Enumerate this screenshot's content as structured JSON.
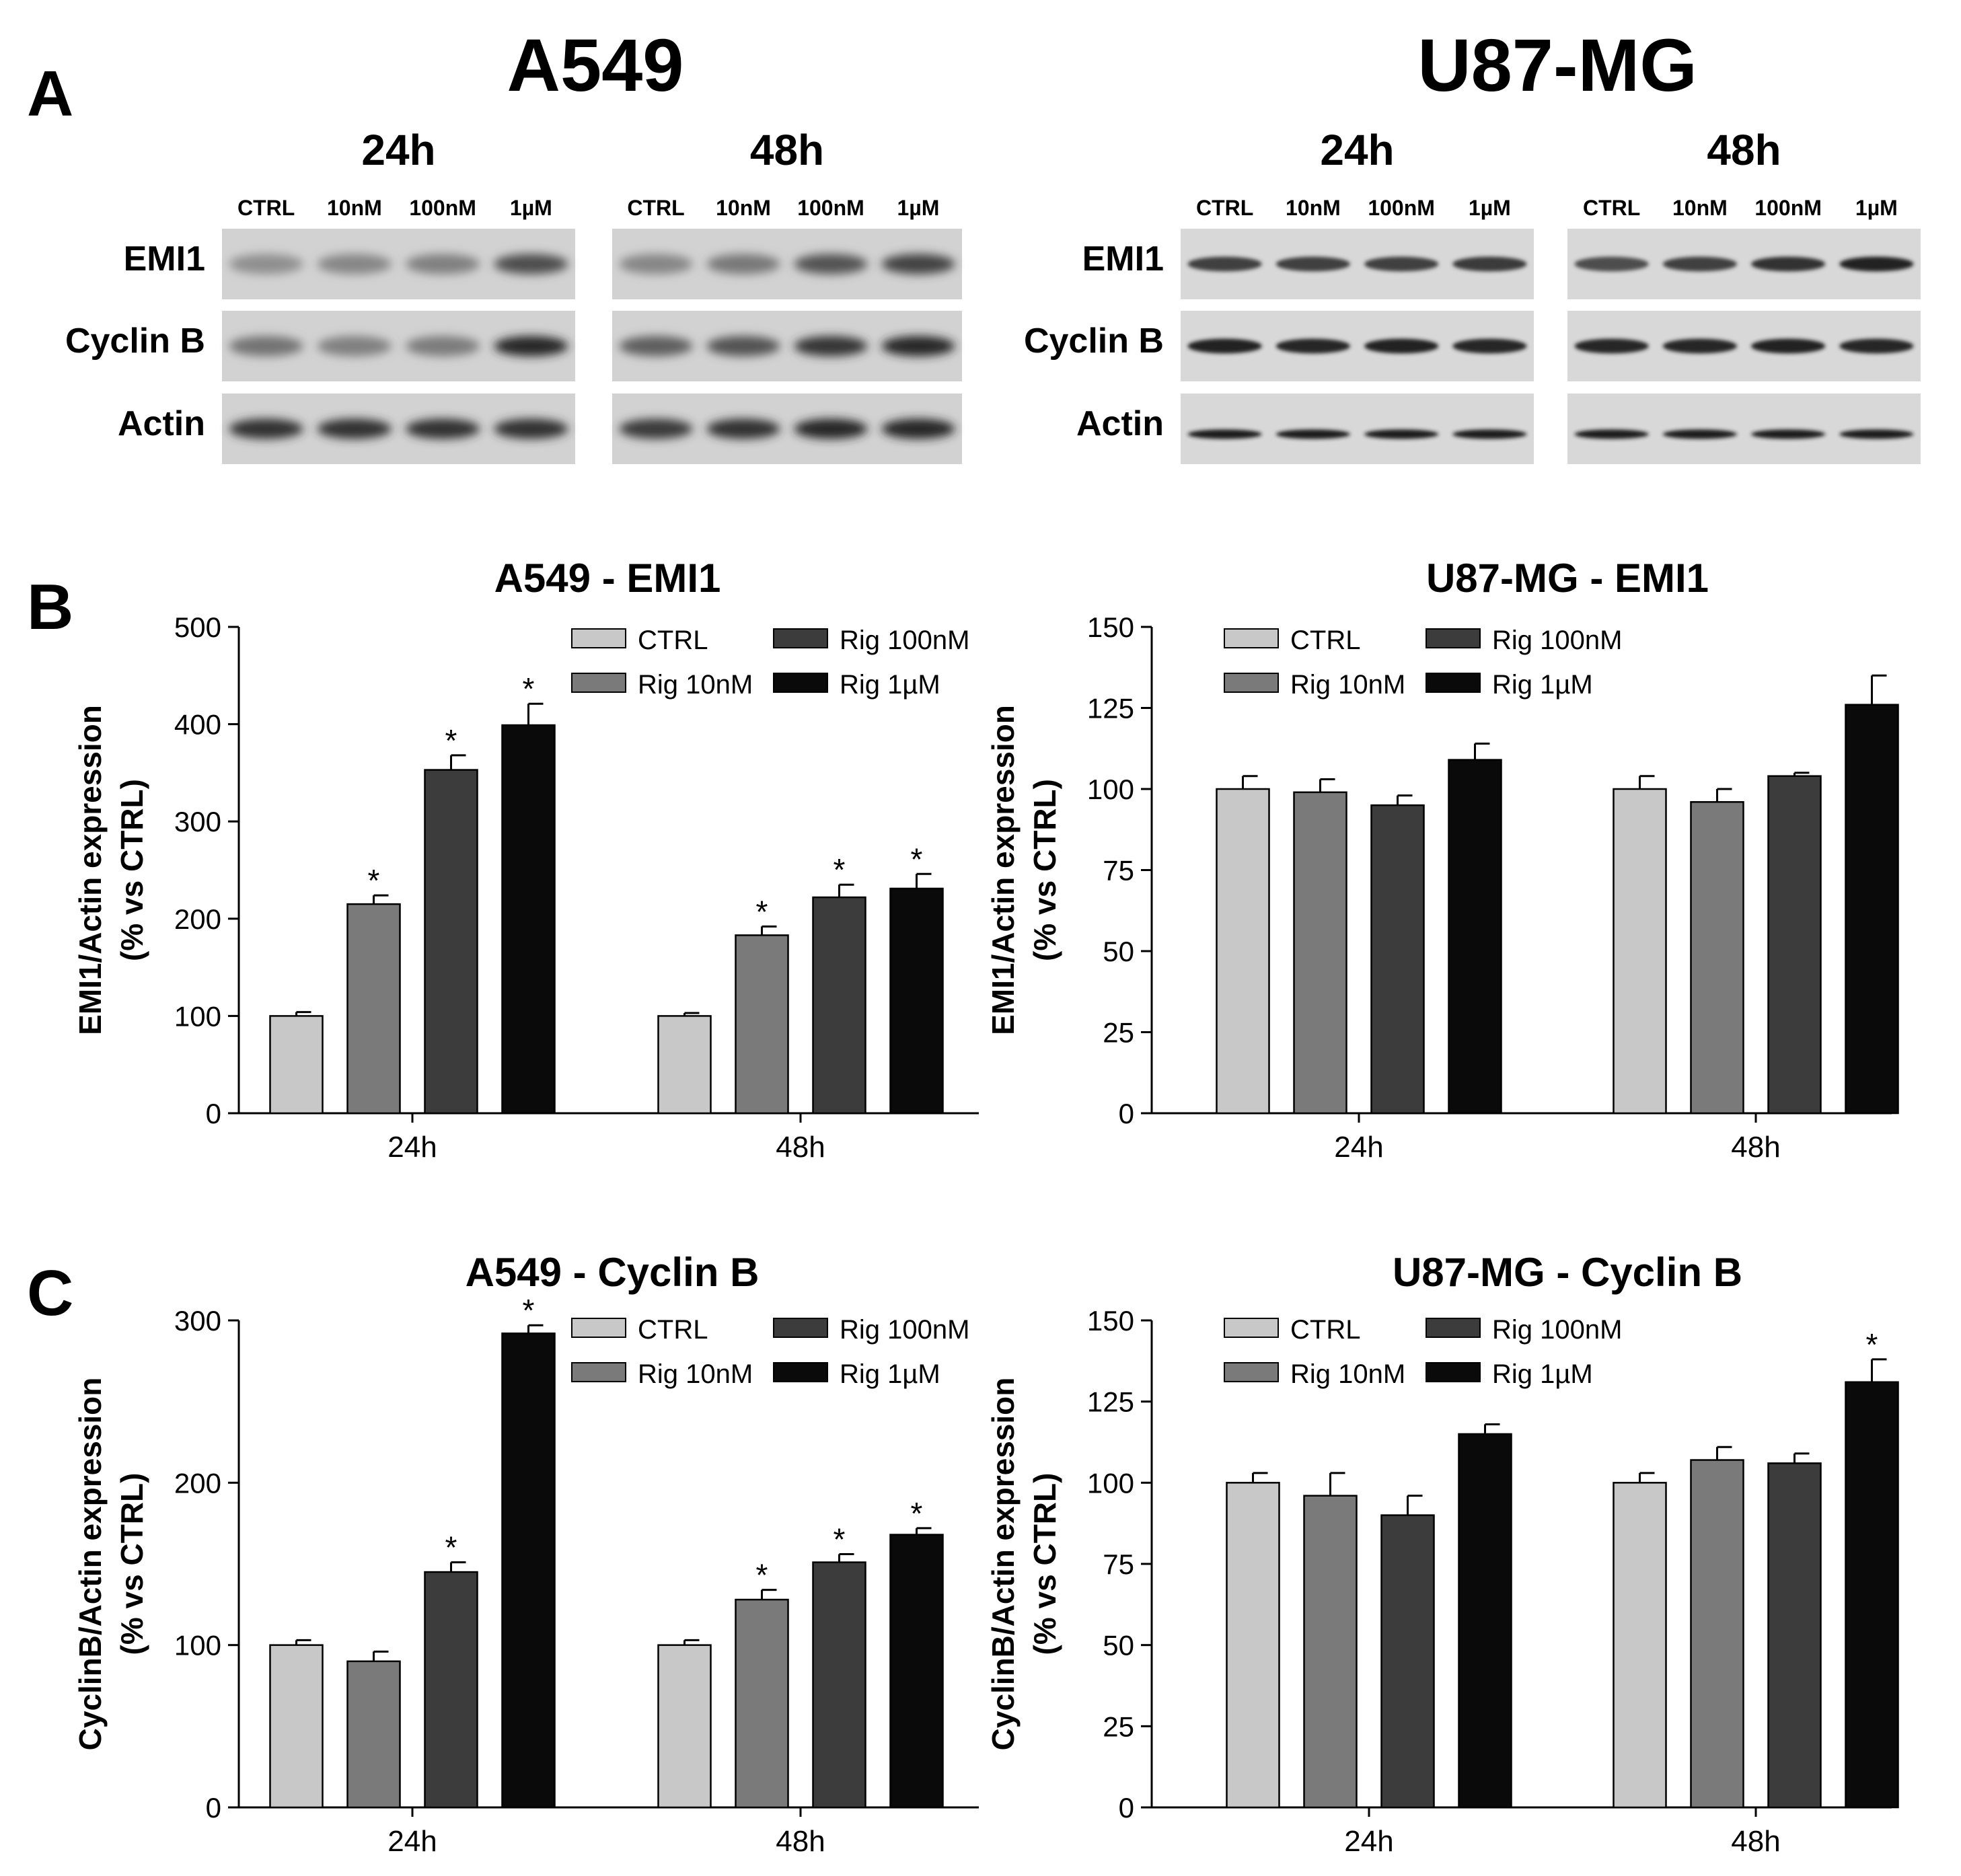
{
  "panel_letters": {
    "a": "A",
    "b": "B",
    "c": "C"
  },
  "western_blot": {
    "groups": [
      {
        "cell_line": "A549",
        "timepoints": [
          {
            "label": "24h",
            "lanes": [
              "CTRL",
              "10nM",
              "100nM",
              "1µM"
            ]
          },
          {
            "label": "48h",
            "lanes": [
              "CTRL",
              "10nM",
              "100nM",
              "1µM"
            ]
          }
        ],
        "rows": [
          "EMI1",
          "Cyclin B",
          "Actin"
        ]
      },
      {
        "cell_line": "U87-MG",
        "timepoints": [
          {
            "label": "24h",
            "lanes": [
              "CTRL",
              "10nM",
              "100nM",
              "1µM"
            ]
          },
          {
            "label": "48h",
            "lanes": [
              "CTRL",
              "10nM",
              "100nM",
              "1µM"
            ]
          }
        ],
        "rows": [
          "EMI1",
          "Cyclin B",
          "Actin"
        ]
      }
    ],
    "band_intensity": {
      "A549": {
        "EMI1": [
          [
            0.3,
            0.35,
            0.38,
            0.65
          ],
          [
            0.35,
            0.42,
            0.62,
            0.7
          ]
        ],
        "Cyclin B": [
          [
            0.45,
            0.38,
            0.4,
            0.85
          ],
          [
            0.55,
            0.62,
            0.78,
            0.85
          ]
        ],
        "Actin": [
          [
            0.8,
            0.8,
            0.8,
            0.8
          ],
          [
            0.75,
            0.8,
            0.85,
            0.85
          ]
        ]
      },
      "U87-MG": {
        "EMI1": [
          [
            0.72,
            0.72,
            0.72,
            0.75
          ],
          [
            0.65,
            0.72,
            0.8,
            0.88
          ]
        ],
        "Cyclin B": [
          [
            0.88,
            0.85,
            0.88,
            0.85
          ],
          [
            0.85,
            0.85,
            0.88,
            0.85
          ]
        ],
        "Actin": [
          [
            0.9,
            0.9,
            0.9,
            0.9
          ],
          [
            0.9,
            0.9,
            0.9,
            0.9
          ]
        ]
      }
    }
  },
  "chart_data": [
    {
      "type": "bar",
      "title": "A549 - EMI1",
      "ylabel": [
        "EMI1/Actin expression",
        "(% vs CTRL)"
      ],
      "xlabel": "",
      "categories": [
        "24h",
        "48h"
      ],
      "ylim": [
        0,
        500
      ],
      "yticks": [
        0,
        100,
        200,
        300,
        400,
        500
      ],
      "legend_position": "top-right",
      "series": [
        {
          "name": "CTRL",
          "values": [
            100,
            100
          ],
          "errors": [
            4,
            3
          ],
          "significant": [
            false,
            false
          ],
          "color": "#c8c8c8"
        },
        {
          "name": "Rig 10nM",
          "values": [
            215,
            183
          ],
          "errors": [
            9,
            9
          ],
          "significant": [
            true,
            true
          ],
          "color": "#7a7a7a"
        },
        {
          "name": "Rig 100nM",
          "values": [
            353,
            222
          ],
          "errors": [
            15,
            13
          ],
          "significant": [
            true,
            true
          ],
          "color": "#3c3c3c"
        },
        {
          "name": "Rig 1µM",
          "values": [
            399,
            231
          ],
          "errors": [
            22,
            15
          ],
          "significant": [
            true,
            true
          ],
          "color": "#0a0a0a"
        }
      ]
    },
    {
      "type": "bar",
      "title": "U87-MG - EMI1",
      "ylabel": [
        "EMI1/Actin expression",
        "(% vs CTRL)"
      ],
      "xlabel": "",
      "categories": [
        "24h",
        "48h"
      ],
      "ylim": [
        0,
        150
      ],
      "yticks": [
        0,
        25,
        50,
        75,
        100,
        125,
        150
      ],
      "legend_position": "top-right",
      "series": [
        {
          "name": "CTRL",
          "values": [
            100,
            100
          ],
          "errors": [
            4,
            4
          ],
          "significant": [
            false,
            false
          ],
          "color": "#c8c8c8"
        },
        {
          "name": "Rig 10nM",
          "values": [
            99,
            96
          ],
          "errors": [
            4,
            4
          ],
          "significant": [
            false,
            false
          ],
          "color": "#7a7a7a"
        },
        {
          "name": "Rig 100nM",
          "values": [
            95,
            104
          ],
          "errors": [
            3,
            1
          ],
          "significant": [
            false,
            false
          ],
          "color": "#3c3c3c"
        },
        {
          "name": "Rig 1µM",
          "values": [
            109,
            126
          ],
          "errors": [
            5,
            9
          ],
          "significant": [
            false,
            false
          ],
          "color": "#0a0a0a"
        }
      ]
    },
    {
      "type": "bar",
      "title": "A549 - Cyclin B",
      "ylabel": [
        "CyclinB/Actin expression",
        "(% vs CTRL)"
      ],
      "xlabel": "",
      "categories": [
        "24h",
        "48h"
      ],
      "ylim": [
        0,
        300
      ],
      "yticks": [
        0,
        100,
        200,
        300
      ],
      "legend_position": "top-right",
      "series": [
        {
          "name": "CTRL",
          "values": [
            100,
            100
          ],
          "errors": [
            3,
            3
          ],
          "significant": [
            false,
            false
          ],
          "color": "#c8c8c8"
        },
        {
          "name": "Rig 10nM",
          "values": [
            90,
            128
          ],
          "errors": [
            6,
            6
          ],
          "significant": [
            false,
            true
          ],
          "color": "#7a7a7a"
        },
        {
          "name": "Rig 100nM",
          "values": [
            145,
            151
          ],
          "errors": [
            6,
            5
          ],
          "significant": [
            true,
            true
          ],
          "color": "#3c3c3c"
        },
        {
          "name": "Rig 1µM",
          "values": [
            292,
            168
          ],
          "errors": [
            5,
            4
          ],
          "significant": [
            true,
            true
          ],
          "color": "#0a0a0a"
        }
      ]
    },
    {
      "type": "bar",
      "title": "U87-MG - Cyclin B",
      "ylabel": [
        "CyclinB/Actin expression",
        "(% vs CTRL)"
      ],
      "xlabel": "",
      "categories": [
        "24h",
        "48h"
      ],
      "ylim": [
        0,
        150
      ],
      "yticks": [
        0,
        25,
        50,
        75,
        100,
        125,
        150
      ],
      "legend_position": "top-right",
      "series": [
        {
          "name": "CTRL",
          "values": [
            100,
            100
          ],
          "errors": [
            3,
            3
          ],
          "significant": [
            false,
            false
          ],
          "color": "#c8c8c8"
        },
        {
          "name": "Rig 10nM",
          "values": [
            96,
            107
          ],
          "errors": [
            7,
            4
          ],
          "significant": [
            false,
            false
          ],
          "color": "#7a7a7a"
        },
        {
          "name": "Rig 100nM",
          "values": [
            90,
            106
          ],
          "errors": [
            6,
            3
          ],
          "significant": [
            false,
            false
          ],
          "color": "#3c3c3c"
        },
        {
          "name": "Rig 1µM",
          "values": [
            115,
            131
          ],
          "errors": [
            3,
            7
          ],
          "significant": [
            false,
            true
          ],
          "color": "#0a0a0a"
        }
      ]
    }
  ],
  "significance_marker": "*"
}
